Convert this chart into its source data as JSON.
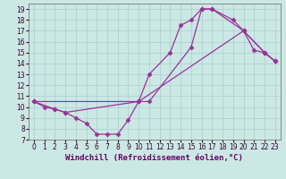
{
  "xlabel": "Windchill (Refroidissement éolien,°C)",
  "background_color": "#cce8e4",
  "grid_color": "#aad4d0",
  "line_color": "#993399",
  "xlim": [
    -0.5,
    23.5
  ],
  "ylim": [
    7,
    19.5
  ],
  "xticks": [
    0,
    1,
    2,
    3,
    4,
    5,
    6,
    7,
    8,
    9,
    10,
    11,
    12,
    13,
    14,
    15,
    16,
    17,
    18,
    19,
    20,
    21,
    22,
    23
  ],
  "yticks": [
    7,
    8,
    9,
    10,
    11,
    12,
    13,
    14,
    15,
    16,
    17,
    18,
    19
  ],
  "line1_x": [
    0,
    1,
    2,
    3,
    4,
    5,
    6,
    7,
    8,
    9,
    10,
    11,
    13,
    14,
    15,
    16,
    17,
    20,
    22,
    23
  ],
  "line1_y": [
    10.5,
    10.0,
    9.8,
    9.5,
    9.0,
    8.5,
    7.5,
    7.5,
    7.5,
    8.8,
    10.5,
    13.0,
    15.0,
    17.5,
    18.0,
    19.0,
    19.0,
    17.0,
    15.0,
    14.2
  ],
  "line2_x": [
    0,
    2,
    3,
    10,
    11,
    15,
    16,
    17,
    19,
    20,
    22,
    23
  ],
  "line2_y": [
    10.5,
    9.8,
    9.5,
    10.5,
    10.5,
    15.5,
    19.0,
    19.0,
    18.0,
    17.0,
    15.0,
    14.2
  ],
  "line3_x": [
    0,
    10,
    20,
    21,
    22,
    23
  ],
  "line3_y": [
    10.5,
    10.5,
    17.0,
    15.2,
    15.0,
    14.2
  ],
  "marker": "D",
  "markersize": 2.5,
  "linewidth": 0.9,
  "xlabel_fontsize": 6.5,
  "tick_fontsize": 5.5
}
